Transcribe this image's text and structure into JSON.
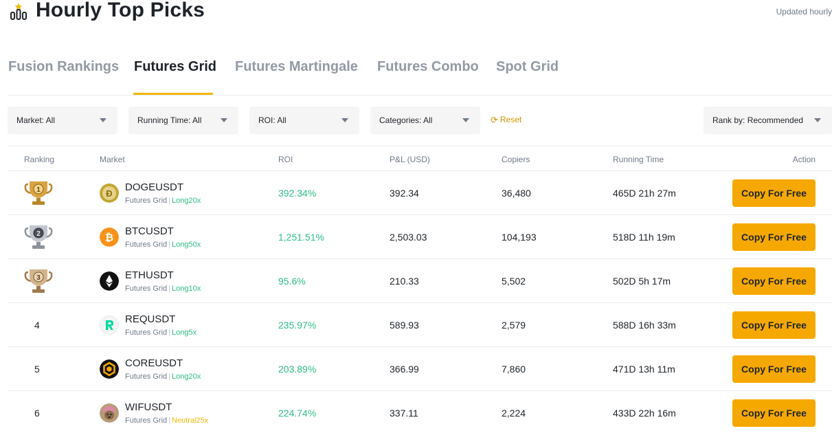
{
  "header": {
    "title": "Hourly Top Picks",
    "updated": "Updated hourly"
  },
  "tabs": [
    {
      "label": "Fusion Rankings",
      "active": false
    },
    {
      "label": "Futures Grid",
      "active": true
    },
    {
      "label": "Futures Martingale",
      "active": false
    },
    {
      "label": "Futures Combo",
      "active": false
    },
    {
      "label": "Spot Grid",
      "active": false
    }
  ],
  "filters": {
    "market": "Market: All",
    "running_time": "Running Time: All",
    "roi": "ROI: All",
    "categories": "Categories: All",
    "reset": "Reset",
    "rank_by": "Rank by: Recommended"
  },
  "columns": {
    "ranking": "Ranking",
    "market": "Market",
    "roi": "ROI",
    "pnl": "P&L (USD)",
    "copiers": "Copiers",
    "running_time": "Running Time",
    "action": "Action"
  },
  "rows": [
    {
      "rank": "1",
      "trophy": "gold-trophy-icon",
      "symbol": "DOGEUSDT",
      "type": "Futures Grid",
      "leverage": "Long20x",
      "leverage_kind": "long",
      "coin_icon": "doge-icon",
      "roi": "392.34%",
      "pnl": "392.34",
      "copiers": "36,480",
      "running_time": "465D 21h 27m",
      "action": "Copy For Free"
    },
    {
      "rank": "2",
      "trophy": "silver-trophy-icon",
      "symbol": "BTCUSDT",
      "type": "Futures Grid",
      "leverage": "Long50x",
      "leverage_kind": "long",
      "coin_icon": "btc-icon",
      "roi": "1,251.51%",
      "pnl": "2,503.03",
      "copiers": "104,193",
      "running_time": "518D 11h 19m",
      "action": "Copy For Free"
    },
    {
      "rank": "3",
      "trophy": "bronze-trophy-icon",
      "symbol": "ETHUSDT",
      "type": "Futures Grid",
      "leverage": "Long10x",
      "leverage_kind": "long",
      "coin_icon": "eth-icon",
      "roi": "95.6%",
      "pnl": "210.33",
      "copiers": "5,502",
      "running_time": "502D 5h 17m",
      "action": "Copy For Free"
    },
    {
      "rank": "4",
      "trophy": "",
      "symbol": "REQUSDT",
      "type": "Futures Grid",
      "leverage": "Long5x",
      "leverage_kind": "long",
      "coin_icon": "req-icon",
      "roi": "235.97%",
      "pnl": "589.93",
      "copiers": "2,579",
      "running_time": "588D 16h 33m",
      "action": "Copy For Free"
    },
    {
      "rank": "5",
      "trophy": "",
      "symbol": "COREUSDT",
      "type": "Futures Grid",
      "leverage": "Long20x",
      "leverage_kind": "long",
      "coin_icon": "core-icon",
      "roi": "203.89%",
      "pnl": "366.99",
      "copiers": "7,860",
      "running_time": "471D 13h 11m",
      "action": "Copy For Free"
    },
    {
      "rank": "6",
      "trophy": "",
      "symbol": "WIFUSDT",
      "type": "Futures Grid",
      "leverage": "Neutral25x",
      "leverage_kind": "neutral",
      "coin_icon": "wif-icon",
      "roi": "224.74%",
      "pnl": "337.11",
      "copiers": "2,224",
      "running_time": "433D 22h 16m",
      "action": "Copy For Free"
    }
  ],
  "colors": {
    "accent": "#F0B90B",
    "button": "#F5A800",
    "positive": "#2EBD85",
    "neutral_leverage": "#F0B90B"
  }
}
